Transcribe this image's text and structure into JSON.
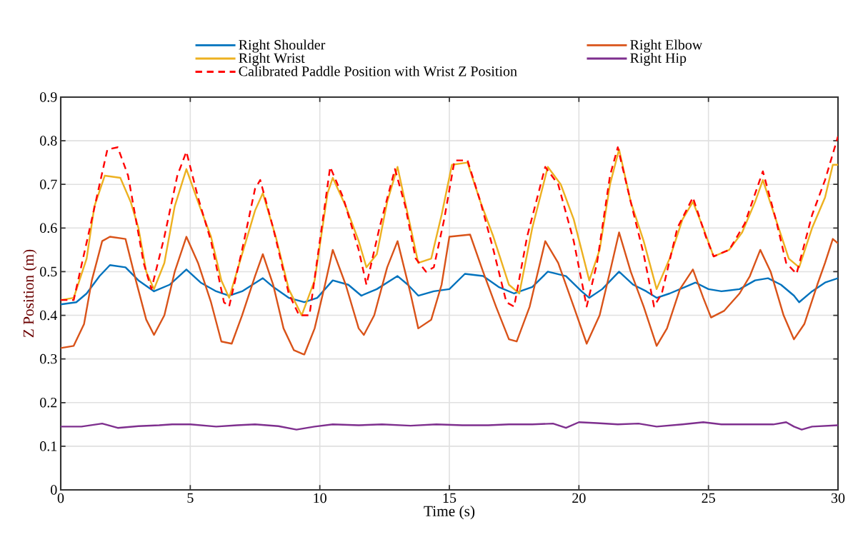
{
  "chart_data": {
    "type": "line",
    "xlabel": "Time (s)",
    "ylabel": "Z Position (m)",
    "xlim": [
      0,
      30
    ],
    "ylim": [
      0,
      0.9
    ],
    "xticks": [
      0,
      5,
      10,
      15,
      20,
      25,
      30
    ],
    "yticks": [
      0,
      0.1,
      0.2,
      0.3,
      0.4,
      0.5,
      0.6,
      0.7,
      0.8,
      0.9
    ],
    "grid": true,
    "legend": "top",
    "series": [
      {
        "name": "Right Shoulder",
        "color": "#0072bd",
        "x": [
          0,
          0.6,
          1.0,
          1.5,
          1.9,
          2.5,
          3.0,
          3.6,
          4.2,
          4.85,
          5.4,
          6.0,
          6.5,
          7.0,
          7.8,
          8.2,
          8.8,
          9.4,
          9.9,
          10.5,
          11.1,
          11.6,
          12.2,
          13.0,
          13.4,
          13.8,
          14.4,
          15.0,
          15.6,
          16.3,
          16.9,
          17.5,
          18.2,
          18.8,
          19.5,
          20.1,
          20.4,
          20.9,
          21.55,
          22.1,
          22.6,
          23.0,
          23.5,
          24.1,
          24.5,
          25.0,
          25.5,
          26.2,
          26.8,
          27.3,
          27.8,
          28.3,
          28.5,
          29.0,
          29.5,
          30
        ],
        "values": [
          0.425,
          0.43,
          0.45,
          0.49,
          0.515,
          0.51,
          0.48,
          0.455,
          0.47,
          0.505,
          0.475,
          0.455,
          0.445,
          0.455,
          0.485,
          0.465,
          0.44,
          0.43,
          0.44,
          0.48,
          0.47,
          0.445,
          0.46,
          0.49,
          0.47,
          0.445,
          0.455,
          0.46,
          0.495,
          0.49,
          0.465,
          0.45,
          0.465,
          0.5,
          0.49,
          0.455,
          0.44,
          0.46,
          0.5,
          0.47,
          0.455,
          0.44,
          0.45,
          0.465,
          0.475,
          0.46,
          0.455,
          0.46,
          0.48,
          0.485,
          0.47,
          0.445,
          0.43,
          0.455,
          0.475,
          0.485
        ]
      },
      {
        "name": "Right Elbow",
        "color": "#d95319",
        "x": [
          0,
          0.5,
          0.9,
          1.2,
          1.6,
          1.9,
          2.5,
          2.9,
          3.3,
          3.6,
          4.0,
          4.4,
          4.85,
          5.3,
          5.8,
          6.2,
          6.6,
          7.0,
          7.5,
          7.8,
          8.2,
          8.6,
          9.0,
          9.4,
          9.8,
          10.2,
          10.5,
          11.0,
          11.5,
          11.7,
          12.1,
          12.6,
          13.0,
          13.5,
          13.8,
          14.3,
          14.7,
          15.0,
          15.8,
          16.3,
          16.8,
          17.3,
          17.6,
          18.1,
          18.7,
          19.2,
          19.8,
          20.3,
          20.8,
          21.2,
          21.55,
          22.0,
          22.5,
          23.0,
          23.4,
          23.9,
          24.4,
          24.8,
          25.1,
          25.6,
          26.2,
          26.6,
          27.0,
          27.4,
          27.9,
          28.3,
          28.7,
          29.2,
          29.5,
          29.8,
          30
        ],
        "values": [
          0.325,
          0.33,
          0.38,
          0.48,
          0.57,
          0.58,
          0.575,
          0.48,
          0.39,
          0.355,
          0.4,
          0.5,
          0.58,
          0.52,
          0.43,
          0.34,
          0.335,
          0.4,
          0.49,
          0.54,
          0.47,
          0.37,
          0.32,
          0.31,
          0.37,
          0.47,
          0.55,
          0.47,
          0.37,
          0.355,
          0.4,
          0.51,
          0.57,
          0.45,
          0.37,
          0.39,
          0.47,
          0.58,
          0.585,
          0.5,
          0.42,
          0.345,
          0.34,
          0.42,
          0.57,
          0.52,
          0.42,
          0.335,
          0.4,
          0.5,
          0.59,
          0.5,
          0.42,
          0.33,
          0.37,
          0.46,
          0.505,
          0.44,
          0.395,
          0.41,
          0.45,
          0.49,
          0.55,
          0.5,
          0.4,
          0.345,
          0.38,
          0.47,
          0.52,
          0.575,
          0.565
        ]
      },
      {
        "name": "Right Wrist",
        "color": "#edb120",
        "x": [
          0,
          0.5,
          1.0,
          1.3,
          1.7,
          2.3,
          2.7,
          3.0,
          3.3,
          3.6,
          4.0,
          4.4,
          4.85,
          5.3,
          5.8,
          6.2,
          6.5,
          6.9,
          7.5,
          7.8,
          8.3,
          8.8,
          9.3,
          9.8,
          10.3,
          10.5,
          11.0,
          11.5,
          11.8,
          12.2,
          12.6,
          13.0,
          13.4,
          13.8,
          14.3,
          14.7,
          15.1,
          15.7,
          16.2,
          16.7,
          17.3,
          17.7,
          18.2,
          18.8,
          19.3,
          19.8,
          20.4,
          20.8,
          21.2,
          21.55,
          22.0,
          22.5,
          23.0,
          23.5,
          24.0,
          24.4,
          24.8,
          25.2,
          25.8,
          26.3,
          26.8,
          27.1,
          27.6,
          28.1,
          28.5,
          29.0,
          29.5,
          29.8,
          30
        ],
        "values": [
          0.435,
          0.44,
          0.53,
          0.65,
          0.72,
          0.715,
          0.66,
          0.6,
          0.5,
          0.46,
          0.52,
          0.65,
          0.735,
          0.66,
          0.58,
          0.48,
          0.44,
          0.52,
          0.64,
          0.68,
          0.58,
          0.46,
          0.4,
          0.48,
          0.68,
          0.715,
          0.65,
          0.57,
          0.51,
          0.54,
          0.66,
          0.74,
          0.63,
          0.52,
          0.53,
          0.63,
          0.745,
          0.75,
          0.66,
          0.58,
          0.47,
          0.45,
          0.6,
          0.74,
          0.7,
          0.62,
          0.48,
          0.55,
          0.7,
          0.78,
          0.66,
          0.57,
          0.46,
          0.53,
          0.62,
          0.66,
          0.6,
          0.535,
          0.55,
          0.59,
          0.66,
          0.71,
          0.62,
          0.53,
          0.51,
          0.6,
          0.67,
          0.745,
          0.745
        ]
      },
      {
        "name": "Right Hip",
        "color": "#7e2f8e",
        "x": [
          0,
          0.8,
          1.6,
          2.2,
          3.0,
          3.8,
          4.3,
          5.0,
          6.0,
          6.8,
          7.5,
          8.4,
          9.1,
          9.8,
          10.5,
          11.5,
          12.4,
          13.5,
          14.5,
          15.5,
          16.5,
          17.3,
          18.2,
          19.0,
          19.5,
          20.0,
          20.7,
          21.5,
          22.3,
          23.0,
          24.0,
          24.8,
          25.5,
          26.5,
          27.5,
          28.0,
          28.3,
          28.6,
          29.0,
          30
        ],
        "values": [
          0.145,
          0.145,
          0.152,
          0.142,
          0.146,
          0.148,
          0.15,
          0.15,
          0.145,
          0.148,
          0.15,
          0.146,
          0.138,
          0.145,
          0.15,
          0.148,
          0.15,
          0.147,
          0.15,
          0.148,
          0.148,
          0.15,
          0.15,
          0.152,
          0.142,
          0.155,
          0.153,
          0.15,
          0.152,
          0.145,
          0.15,
          0.155,
          0.15,
          0.15,
          0.15,
          0.155,
          0.145,
          0.138,
          0.145,
          0.148
        ]
      },
      {
        "name": "Calibrated Paddle Position with Wrist Z Position",
        "color": "#ff0000",
        "line_style": "dashed",
        "x": [
          0,
          0.5,
          1.2,
          1.8,
          2.2,
          2.6,
          3.2,
          3.5,
          4.0,
          4.5,
          4.85,
          5.3,
          5.8,
          6.3,
          6.5,
          7.0,
          7.5,
          7.7,
          8.2,
          8.8,
          9.2,
          9.6,
          10.0,
          10.4,
          10.9,
          11.5,
          11.8,
          12.3,
          12.9,
          13.3,
          13.7,
          14.1,
          14.4,
          14.8,
          15.2,
          15.7,
          16.2,
          16.7,
          17.2,
          17.5,
          18.0,
          18.7,
          19.2,
          19.8,
          20.3,
          20.7,
          21.2,
          21.5,
          22.0,
          22.5,
          22.9,
          23.2,
          23.8,
          24.4,
          24.9,
          25.2,
          25.8,
          26.4,
          27.1,
          27.6,
          28.0,
          28.4,
          29.0,
          29.5,
          30
        ],
        "values": [
          0.435,
          0.435,
          0.62,
          0.78,
          0.785,
          0.72,
          0.52,
          0.46,
          0.58,
          0.72,
          0.775,
          0.67,
          0.57,
          0.43,
          0.42,
          0.55,
          0.69,
          0.71,
          0.6,
          0.45,
          0.4,
          0.4,
          0.57,
          0.74,
          0.67,
          0.55,
          0.47,
          0.6,
          0.735,
          0.65,
          0.53,
          0.5,
          0.51,
          0.62,
          0.755,
          0.755,
          0.66,
          0.55,
          0.43,
          0.42,
          0.58,
          0.74,
          0.7,
          0.57,
          0.42,
          0.52,
          0.72,
          0.785,
          0.66,
          0.54,
          0.42,
          0.45,
          0.6,
          0.67,
          0.58,
          0.535,
          0.55,
          0.61,
          0.73,
          0.62,
          0.52,
          0.495,
          0.63,
          0.71,
          0.81
        ]
      }
    ]
  }
}
